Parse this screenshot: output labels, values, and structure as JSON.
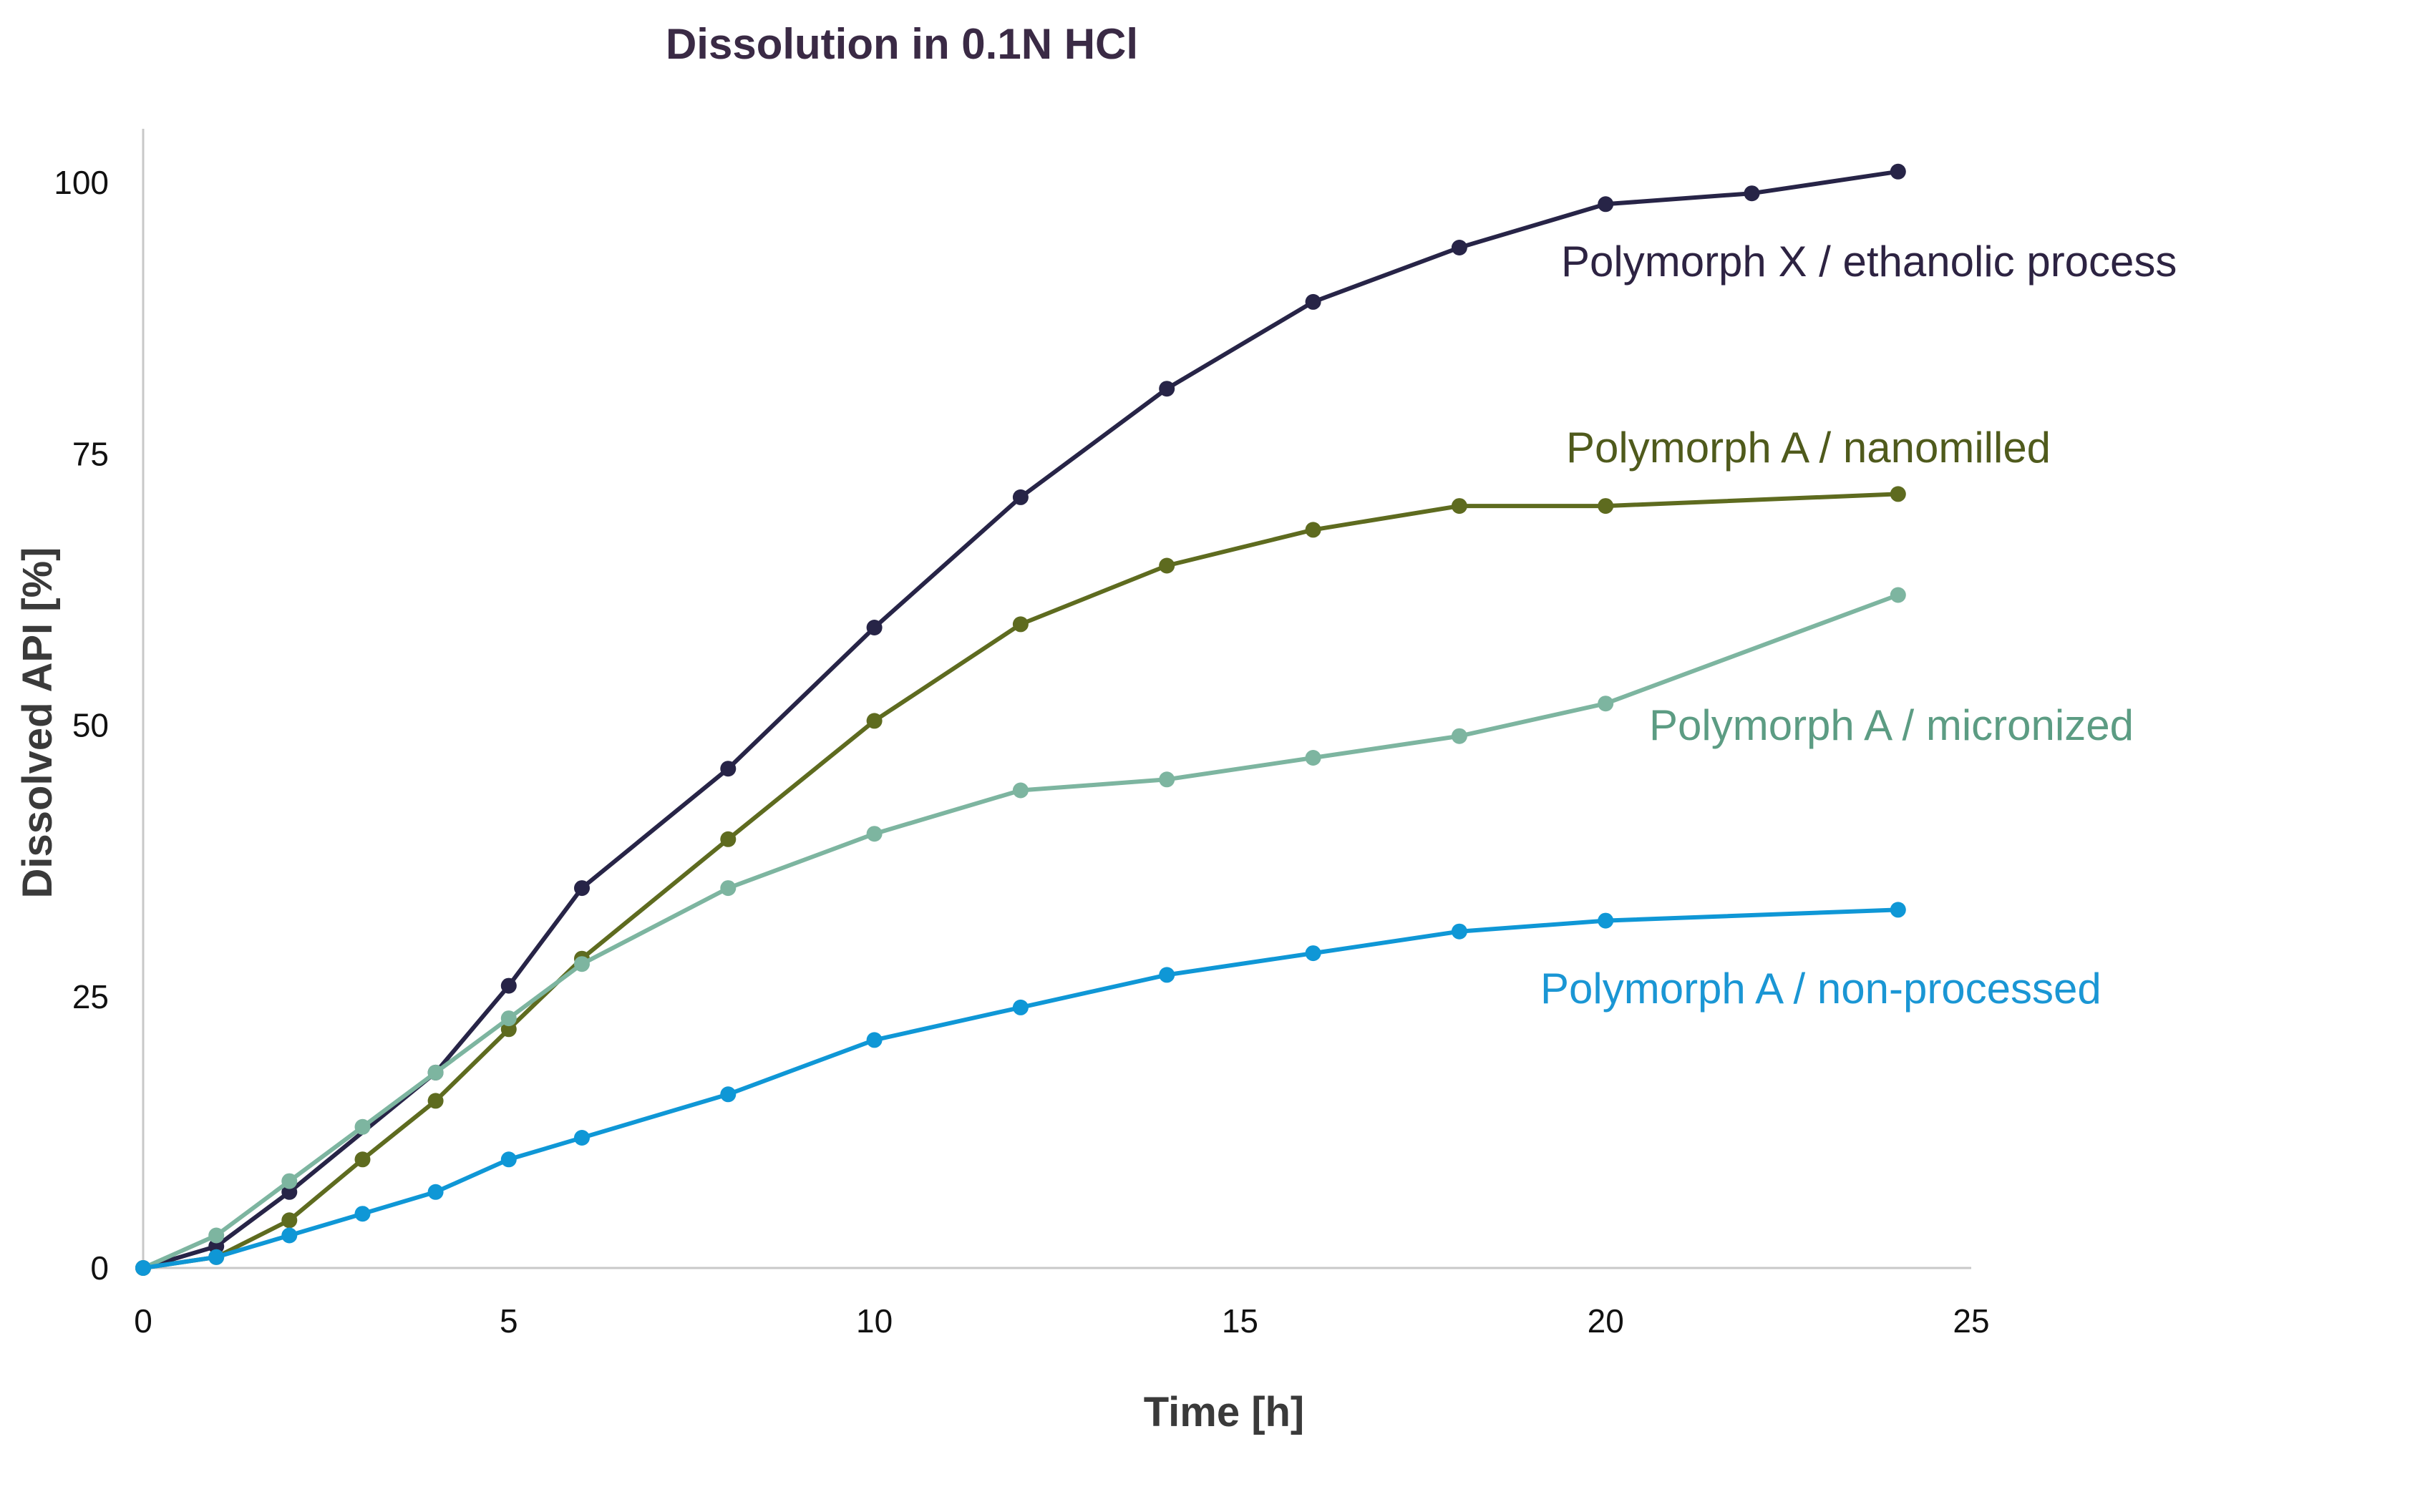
{
  "chart_data": {
    "type": "line",
    "title": "Dissolution in 0.1N HCl",
    "xlabel": "Time [h]",
    "ylabel": "Dissolved API [%]",
    "xlim": [
      0,
      25
    ],
    "ylim": [
      0,
      105
    ],
    "xticks": [
      0,
      5,
      10,
      15,
      20,
      25
    ],
    "yticks": [
      0,
      25,
      50,
      75,
      100
    ],
    "xtick_labels": [
      "0",
      "5",
      "10",
      "15",
      "20",
      "25"
    ],
    "ytick_labels": [
      "0",
      "25",
      "50",
      "75",
      "100"
    ],
    "grid": false,
    "legend": "inline labels next to series",
    "series": [
      {
        "name": "Polymorph X / ethanolic process",
        "color": "#272447",
        "label_color": "#2d2342",
        "x": [
          0,
          1,
          2,
          4,
          5,
          6,
          8,
          10,
          12,
          14,
          16,
          18,
          20,
          22,
          24
        ],
        "y": [
          0,
          2,
          7,
          18,
          26,
          35,
          46,
          59,
          71,
          81,
          89,
          94,
          98,
          99,
          101
        ]
      },
      {
        "name": "Polymorph A / nanomilled",
        "color": "#5e6b1f",
        "label_color": "#4f5a1c",
        "x": [
          0,
          1,
          2,
          3,
          4,
          5,
          6,
          8,
          10,
          12,
          14,
          16,
          18,
          20,
          24
        ],
        "y": [
          0,
          1,
          4.4,
          10,
          15.4,
          22,
          28.5,
          39.5,
          50.4,
          59.3,
          64.7,
          68,
          70.2,
          70.2,
          71.3
        ]
      },
      {
        "name": "Polymorph A / micronized",
        "color": "#7db5a0",
        "label_color": "#5c9c83",
        "x": [
          0,
          1,
          2,
          3,
          4,
          5,
          6,
          8,
          10,
          12,
          14,
          16,
          18,
          20,
          24
        ],
        "y": [
          0,
          3,
          8,
          13,
          18,
          23,
          28,
          35,
          40,
          44,
          45,
          47,
          49,
          52,
          62
        ]
      },
      {
        "name": "Polymorph A / non-processed",
        "color": "#0f97d6",
        "label_color": "#1a96d4",
        "x": [
          0,
          1,
          2,
          3,
          4,
          5,
          6,
          8,
          10,
          12,
          14,
          16,
          18,
          20,
          24
        ],
        "y": [
          0,
          1,
          3,
          5,
          7,
          10,
          12,
          16,
          21,
          24,
          27,
          29,
          31,
          32,
          33
        ]
      }
    ]
  }
}
